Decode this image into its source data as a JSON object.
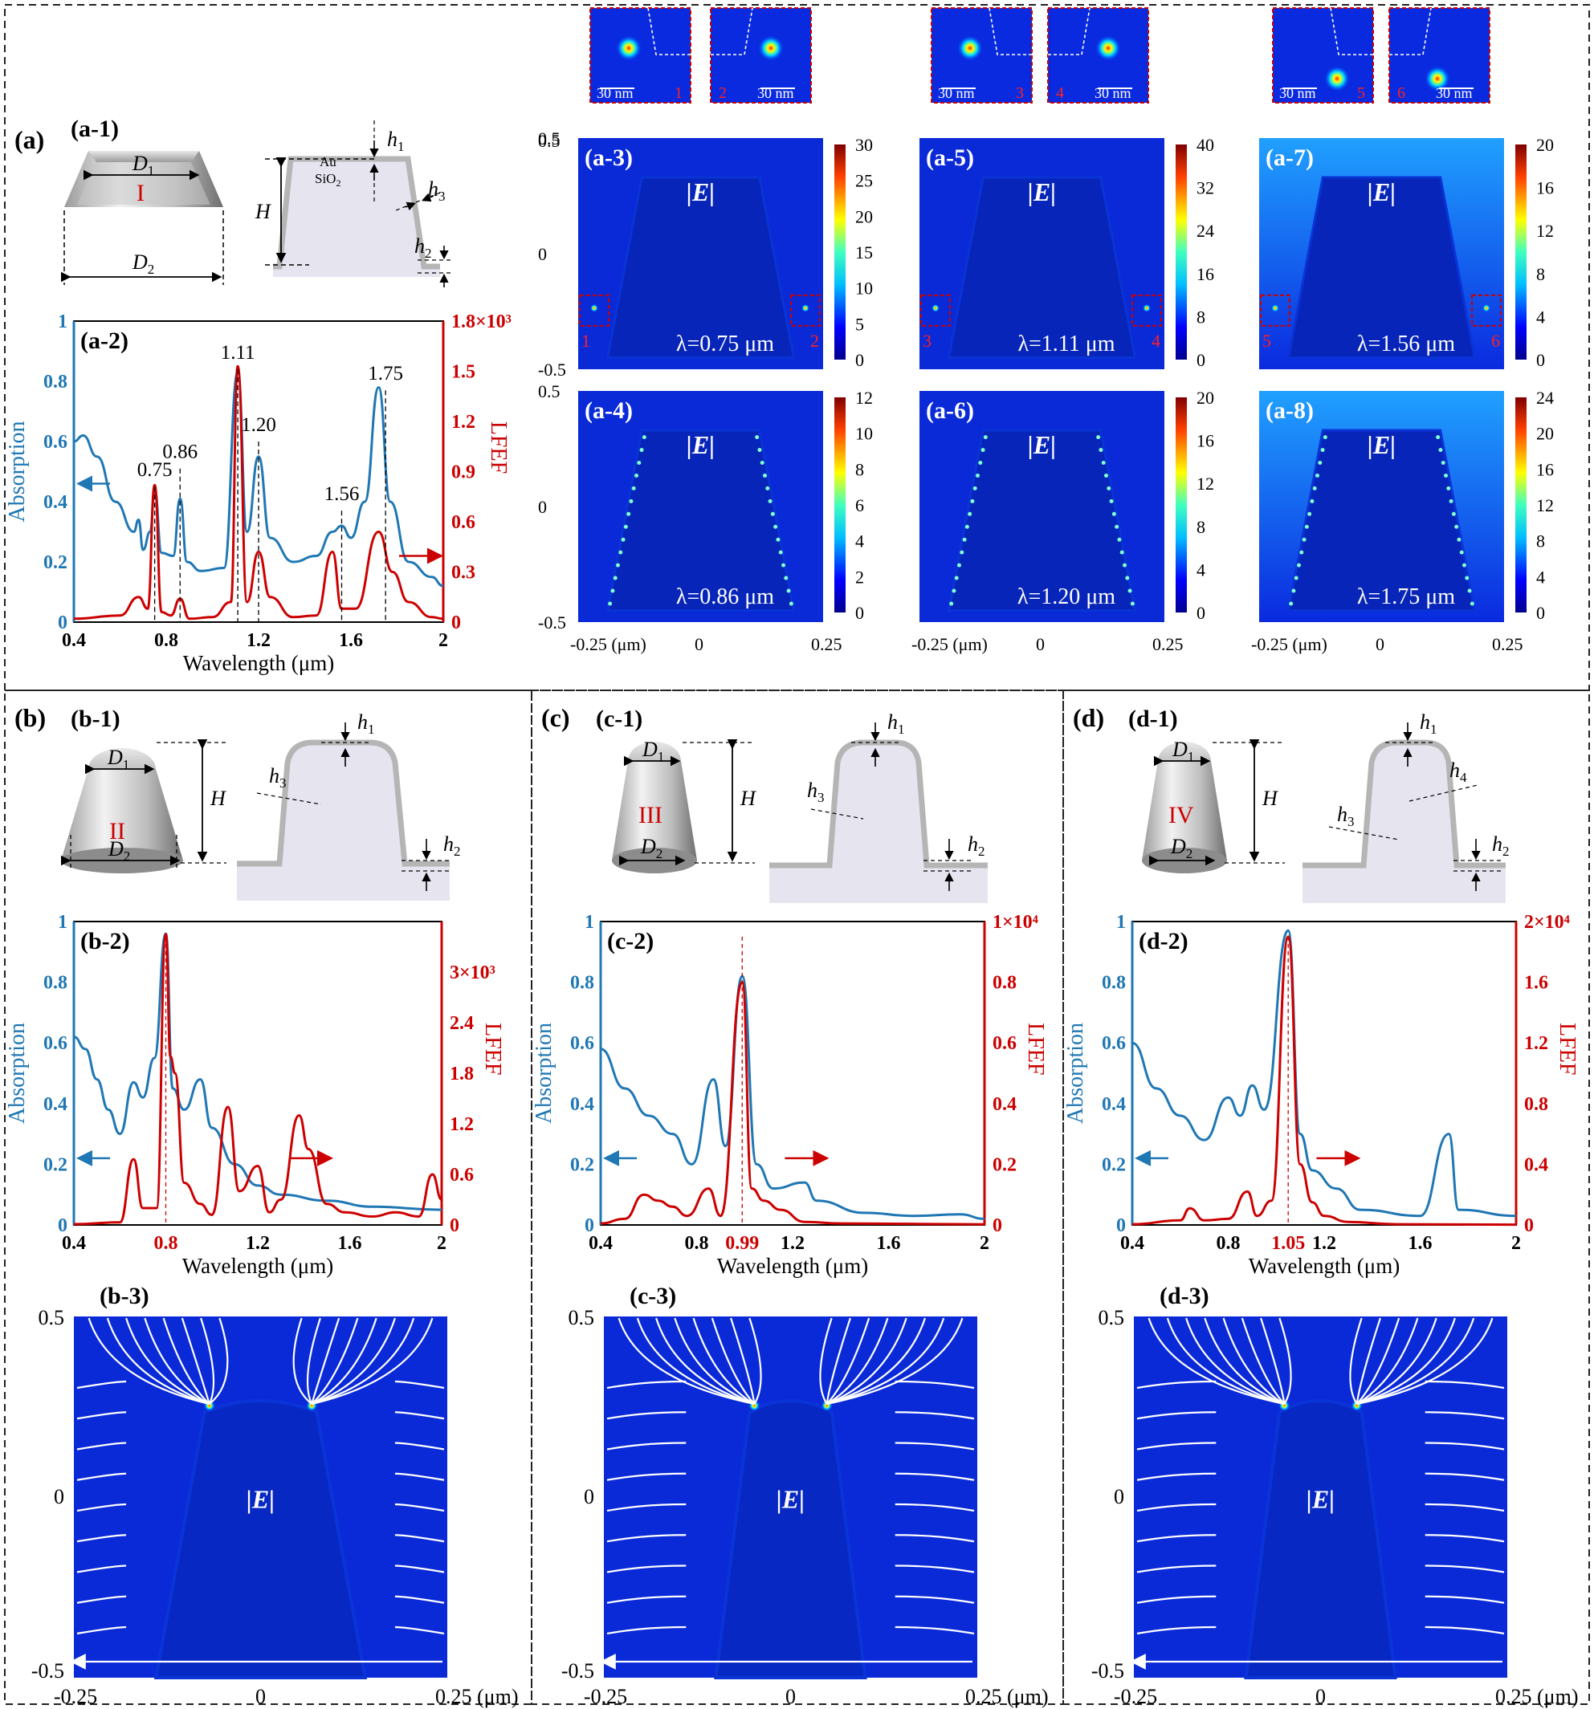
{
  "panels": {
    "a": {
      "label": "(a)"
    },
    "b": {
      "label": "(b)"
    },
    "c": {
      "label": "(c)"
    },
    "d": {
      "label": "(d)"
    }
  },
  "schematics": {
    "a1": {
      "label": "(a-1)",
      "roman": "I",
      "d1": "D",
      "d1_sub": "1",
      "d2": "D",
      "d2_sub": "2",
      "H": "H",
      "h1": "h",
      "h1_sub": "1",
      "h2": "h",
      "h2_sub": "2",
      "h3": "h",
      "h3_sub": "3",
      "au": "Au",
      "sio2": "SiO",
      "sio2_sub": "2"
    },
    "b1": {
      "label": "(b-1)",
      "roman": "II",
      "d1": "D",
      "d1_sub": "1",
      "d2": "D",
      "d2_sub": "2",
      "H": "H",
      "h1": "h",
      "h1_sub": "1",
      "h2": "h",
      "h2_sub": "2",
      "h3": "h",
      "h3_sub": "3"
    },
    "c1": {
      "label": "(c-1)",
      "roman": "III",
      "d1": "D",
      "d1_sub": "1",
      "d2": "D",
      "d2_sub": "2",
      "H": "H",
      "h1": "h",
      "h1_sub": "1",
      "h2": "h",
      "h2_sub": "2",
      "h3": "h",
      "h3_sub": "3"
    },
    "d1": {
      "label": "(d-1)",
      "roman": "IV",
      "d1": "D",
      "d1_sub": "1",
      "d2": "D",
      "d2_sub": "2",
      "H": "H",
      "h1": "h",
      "h1_sub": "1",
      "h2": "h",
      "h2_sub": "2",
      "h3": "h",
      "h3_sub": "3",
      "h4": "h",
      "h4_sub": "4"
    }
  },
  "insets": [
    {
      "num": "1",
      "scale": "30 nm"
    },
    {
      "num": "2",
      "scale": "30 nm"
    },
    {
      "num": "3",
      "scale": "30 nm"
    },
    {
      "num": "4",
      "scale": "30 nm"
    },
    {
      "num": "5",
      "scale": "30 nm"
    },
    {
      "num": "6",
      "scale": "30 nm"
    }
  ],
  "fieldmaps_a": {
    "y_ticks": [
      "0.5",
      "0",
      "-0.5"
    ],
    "x_ticks": [
      "-0.25 (μm)",
      "0",
      "0.25"
    ],
    "maps": [
      {
        "label": "(a-3)",
        "lambda": "λ=0.75 μm",
        "quantity": "|E|",
        "cbar": [
          "30",
          "25",
          "20",
          "15",
          "10",
          "5",
          "0"
        ],
        "boxes": [
          "1",
          "2"
        ],
        "bright": 0
      },
      {
        "label": "(a-5)",
        "lambda": "λ=1.11 μm",
        "quantity": "|E|",
        "cbar": [
          "40",
          "32",
          "24",
          "16",
          "8",
          "0"
        ],
        "boxes": [
          "3",
          "4"
        ],
        "bright": 0
      },
      {
        "label": "(a-7)",
        "lambda": "λ=1.56 μm",
        "quantity": "|E|",
        "cbar": [
          "20",
          "16",
          "12",
          "8",
          "4",
          "0"
        ],
        "boxes": [
          "5",
          "6"
        ],
        "bright": 1
      },
      {
        "label": "(a-4)",
        "lambda": "λ=0.86 μm",
        "quantity": "|E|",
        "cbar": [
          "12",
          "10",
          "8",
          "6",
          "4",
          "2",
          "0"
        ],
        "boxes": [],
        "bright": 0
      },
      {
        "label": "(a-6)",
        "lambda": "λ=1.20 μm",
        "quantity": "|E|",
        "cbar": [
          "20",
          "16",
          "12",
          "8",
          "4",
          "0"
        ],
        "boxes": [],
        "bright": 0
      },
      {
        "label": "(a-8)",
        "lambda": "λ=1.75 μm",
        "quantity": "|E|",
        "cbar": [
          "24",
          "20",
          "16",
          "12",
          "8",
          "4",
          "0"
        ],
        "boxes": [],
        "bright": 1
      }
    ]
  },
  "fieldmaps_bottom": [
    {
      "label": "(b-3)",
      "quantity": "|E|",
      "y_ticks": [
        "0.5",
        "0",
        "-0.5"
      ],
      "x_ticks": [
        "-0.25",
        "0",
        "0.25 (μm)"
      ]
    },
    {
      "label": "(c-3)",
      "quantity": "|E|",
      "y_ticks": [
        "0.5",
        "0",
        "-0.5"
      ],
      "x_ticks": [
        "-0.25",
        "0",
        "0.25 (μm)"
      ]
    },
    {
      "label": "(d-3)",
      "quantity": "|E|",
      "y_ticks": [
        "0.5",
        "0",
        "-0.5"
      ],
      "x_ticks": [
        "-0.25",
        "0",
        "0.25 (μm)"
      ]
    }
  ],
  "chart_data": [
    {
      "id": "a-2",
      "type": "line",
      "label": "(a-2)",
      "xlabel": "Wavelength (μm)",
      "ylabel_left": "Absorption",
      "ylabel_right": "LFEF",
      "xlim": [
        0.4,
        2.0
      ],
      "x_ticks": [
        "0.4",
        "0.8",
        "1.2",
        "1.6",
        "2"
      ],
      "ylim_left": [
        0,
        1
      ],
      "left_ticks": [
        "0",
        "0.2",
        "0.4",
        "0.6",
        "0.8",
        "1"
      ],
      "ylim_right": [
        0,
        1800
      ],
      "right_ticks": [
        "0",
        "0.3",
        "0.6",
        "0.9",
        "1.2",
        "1.5",
        "1.8"
      ],
      "right_exp": "×10³",
      "series": [
        {
          "name": "Absorption",
          "axis": "left",
          "color": "#1f77b4",
          "peaks": [
            [
              0.4,
              0.6
            ],
            [
              0.44,
              0.62
            ],
            [
              0.5,
              0.55
            ],
            [
              0.58,
              0.4
            ],
            [
              0.66,
              0.3
            ],
            [
              0.68,
              0.34
            ],
            [
              0.7,
              0.24
            ],
            [
              0.73,
              0.3
            ],
            [
              0.75,
              0.44
            ],
            [
              0.78,
              0.23
            ],
            [
              0.83,
              0.22
            ],
            [
              0.86,
              0.41
            ],
            [
              0.89,
              0.2
            ],
            [
              0.95,
              0.17
            ],
            [
              1.05,
              0.18
            ],
            [
              1.11,
              0.83
            ],
            [
              1.15,
              0.3
            ],
            [
              1.2,
              0.55
            ],
            [
              1.25,
              0.28
            ],
            [
              1.35,
              0.2
            ],
            [
              1.45,
              0.22
            ],
            [
              1.52,
              0.3
            ],
            [
              1.56,
              0.32
            ],
            [
              1.6,
              0.28
            ],
            [
              1.66,
              0.4
            ],
            [
              1.72,
              0.78
            ],
            [
              1.77,
              0.4
            ],
            [
              1.85,
              0.2
            ],
            [
              1.95,
              0.15
            ],
            [
              2.0,
              0.12
            ]
          ]
        },
        {
          "name": "LFEF",
          "axis": "right",
          "color": "#cc0000",
          "peaks": [
            [
              0.4,
              20
            ],
            [
              0.6,
              40
            ],
            [
              0.68,
              150
            ],
            [
              0.72,
              80
            ],
            [
              0.75,
              820
            ],
            [
              0.78,
              60
            ],
            [
              0.82,
              40
            ],
            [
              0.86,
              140
            ],
            [
              0.9,
              20
            ],
            [
              1.0,
              30
            ],
            [
              1.08,
              120
            ],
            [
              1.11,
              1530
            ],
            [
              1.15,
              120
            ],
            [
              1.2,
              420
            ],
            [
              1.25,
              150
            ],
            [
              1.35,
              30
            ],
            [
              1.45,
              40
            ],
            [
              1.52,
              420
            ],
            [
              1.56,
              80
            ],
            [
              1.62,
              80
            ],
            [
              1.72,
              540
            ],
            [
              1.78,
              300
            ],
            [
              1.85,
              120
            ],
            [
              1.95,
              30
            ],
            [
              2.0,
              20
            ]
          ]
        }
      ],
      "annotations": [
        "0.75",
        "0.86",
        "1.11",
        "1.20",
        "1.56",
        "1.75"
      ]
    },
    {
      "id": "b-2",
      "type": "line",
      "label": "(b-2)",
      "xlabel": "Wavelength (μm)",
      "ylabel_left": "Absorption",
      "ylabel_right": "LFEF",
      "xlim": [
        0.4,
        2.0
      ],
      "x_ticks": [
        "0.4",
        "0.8",
        "1.2",
        "1.6",
        "2"
      ],
      "x_highlight": "0.8",
      "ylim_left": [
        0,
        1
      ],
      "left_ticks": [
        "0",
        "0.2",
        "0.4",
        "0.6",
        "0.8",
        "1"
      ],
      "ylim_right": [
        0,
        3600
      ],
      "right_ticks": [
        "0",
        "0.6",
        "1.2",
        "1.8",
        "2.4",
        "3"
      ],
      "right_exp": "×10³",
      "series": [
        {
          "name": "Absorption",
          "axis": "left",
          "color": "#1f77b4",
          "peaks": [
            [
              0.4,
              0.62
            ],
            [
              0.45,
              0.58
            ],
            [
              0.5,
              0.48
            ],
            [
              0.55,
              0.38
            ],
            [
              0.6,
              0.3
            ],
            [
              0.66,
              0.47
            ],
            [
              0.7,
              0.42
            ],
            [
              0.75,
              0.55
            ],
            [
              0.8,
              0.96
            ],
            [
              0.83,
              0.45
            ],
            [
              0.88,
              0.38
            ],
            [
              0.95,
              0.48
            ],
            [
              1.0,
              0.32
            ],
            [
              1.1,
              0.2
            ],
            [
              1.2,
              0.13
            ],
            [
              1.3,
              0.1
            ],
            [
              1.5,
              0.08
            ],
            [
              1.7,
              0.06
            ],
            [
              2.0,
              0.05
            ]
          ]
        },
        {
          "name": "LFEF",
          "axis": "right",
          "color": "#cc0000",
          "peaks": [
            [
              0.4,
              10
            ],
            [
              0.6,
              30
            ],
            [
              0.66,
              780
            ],
            [
              0.7,
              200
            ],
            [
              0.76,
              200
            ],
            [
              0.8,
              3450
            ],
            [
              0.82,
              2000
            ],
            [
              0.84,
              1800
            ],
            [
              0.88,
              500
            ],
            [
              0.95,
              250
            ],
            [
              1.0,
              120
            ],
            [
              1.07,
              1400
            ],
            [
              1.12,
              400
            ],
            [
              1.2,
              700
            ],
            [
              1.25,
              150
            ],
            [
              1.3,
              300
            ],
            [
              1.38,
              1300
            ],
            [
              1.42,
              900
            ],
            [
              1.5,
              250
            ],
            [
              1.58,
              150
            ],
            [
              1.7,
              100
            ],
            [
              1.8,
              150
            ],
            [
              1.9,
              100
            ],
            [
              1.96,
              600
            ],
            [
              2.0,
              300
            ]
          ]
        }
      ]
    },
    {
      "id": "c-2",
      "type": "line",
      "label": "(c-2)",
      "xlabel": "Wavelength (μm)",
      "ylabel_left": "Absorption",
      "ylabel_right": "LFEF",
      "xlim": [
        0.4,
        2.0
      ],
      "x_ticks": [
        "0.4",
        "0.8",
        "0.99",
        "1.2",
        "1.6",
        "2"
      ],
      "x_highlight": "0.99",
      "ylim_left": [
        0,
        1
      ],
      "left_ticks": [
        "0",
        "0.2",
        "0.4",
        "0.6",
        "0.8",
        "1"
      ],
      "ylim_right": [
        0,
        10000
      ],
      "right_ticks": [
        "0",
        "0.2",
        "0.4",
        "0.6",
        "0.8",
        "1"
      ],
      "right_exp": "×10⁴",
      "series": [
        {
          "name": "Absorption",
          "axis": "left",
          "color": "#1f77b4",
          "peaks": [
            [
              0.4,
              0.58
            ],
            [
              0.5,
              0.45
            ],
            [
              0.6,
              0.36
            ],
            [
              0.7,
              0.3
            ],
            [
              0.78,
              0.2
            ],
            [
              0.87,
              0.48
            ],
            [
              0.92,
              0.26
            ],
            [
              0.99,
              0.82
            ],
            [
              1.05,
              0.2
            ],
            [
              1.12,
              0.12
            ],
            [
              1.25,
              0.14
            ],
            [
              1.3,
              0.08
            ],
            [
              1.5,
              0.04
            ],
            [
              1.7,
              0.03
            ],
            [
              1.9,
              0.035
            ],
            [
              2.0,
              0.02
            ]
          ]
        },
        {
          "name": "LFEF",
          "axis": "right",
          "color": "#cc0000",
          "peaks": [
            [
              0.4,
              50
            ],
            [
              0.5,
              200
            ],
            [
              0.58,
              1000
            ],
            [
              0.64,
              800
            ],
            [
              0.7,
              600
            ],
            [
              0.76,
              300
            ],
            [
              0.85,
              1200
            ],
            [
              0.9,
              300
            ],
            [
              0.99,
              8000
            ],
            [
              1.03,
              1200
            ],
            [
              1.08,
              800
            ],
            [
              1.15,
              500
            ],
            [
              1.25,
              100
            ],
            [
              1.4,
              50
            ],
            [
              2.0,
              20
            ]
          ]
        }
      ]
    },
    {
      "id": "d-2",
      "type": "line",
      "label": "(d-2)",
      "xlabel": "Wavelength (μm)",
      "ylabel_left": "Absorption",
      "ylabel_right": "LFEF",
      "xlim": [
        0.4,
        2.0
      ],
      "x_ticks": [
        "0.4",
        "0.8",
        "1.05",
        "1.2",
        "1.6",
        "2"
      ],
      "x_highlight": "1.05",
      "ylim_left": [
        0,
        1
      ],
      "left_ticks": [
        "0",
        "0.2",
        "0.4",
        "0.6",
        "0.8",
        "1"
      ],
      "ylim_right": [
        0,
        20000
      ],
      "right_ticks": [
        "0",
        "0.4",
        "0.8",
        "1.2",
        "1.6",
        "2"
      ],
      "right_exp": "×10⁴",
      "series": [
        {
          "name": "Absorption",
          "axis": "left",
          "color": "#1f77b4",
          "peaks": [
            [
              0.4,
              0.6
            ],
            [
              0.5,
              0.45
            ],
            [
              0.6,
              0.36
            ],
            [
              0.7,
              0.28
            ],
            [
              0.8,
              0.42
            ],
            [
              0.85,
              0.36
            ],
            [
              0.9,
              0.46
            ],
            [
              0.95,
              0.38
            ],
            [
              1.05,
              0.97
            ],
            [
              1.1,
              0.3
            ],
            [
              1.15,
              0.18
            ],
            [
              1.25,
              0.12
            ],
            [
              1.35,
              0.05
            ],
            [
              1.6,
              0.03
            ],
            [
              1.72,
              0.3
            ],
            [
              1.76,
              0.05
            ],
            [
              2.0,
              0.03
            ]
          ]
        },
        {
          "name": "LFEF",
          "axis": "right",
          "color": "#cc0000",
          "peaks": [
            [
              0.4,
              50
            ],
            [
              0.6,
              300
            ],
            [
              0.64,
              1100
            ],
            [
              0.7,
              300
            ],
            [
              0.8,
              400
            ],
            [
              0.88,
              2200
            ],
            [
              0.92,
              600
            ],
            [
              0.98,
              1600
            ],
            [
              1.05,
              19000
            ],
            [
              1.1,
              4000
            ],
            [
              1.15,
              1500
            ],
            [
              1.2,
              600
            ],
            [
              1.3,
              200
            ],
            [
              1.5,
              50
            ],
            [
              2.0,
              20
            ]
          ]
        }
      ]
    }
  ]
}
